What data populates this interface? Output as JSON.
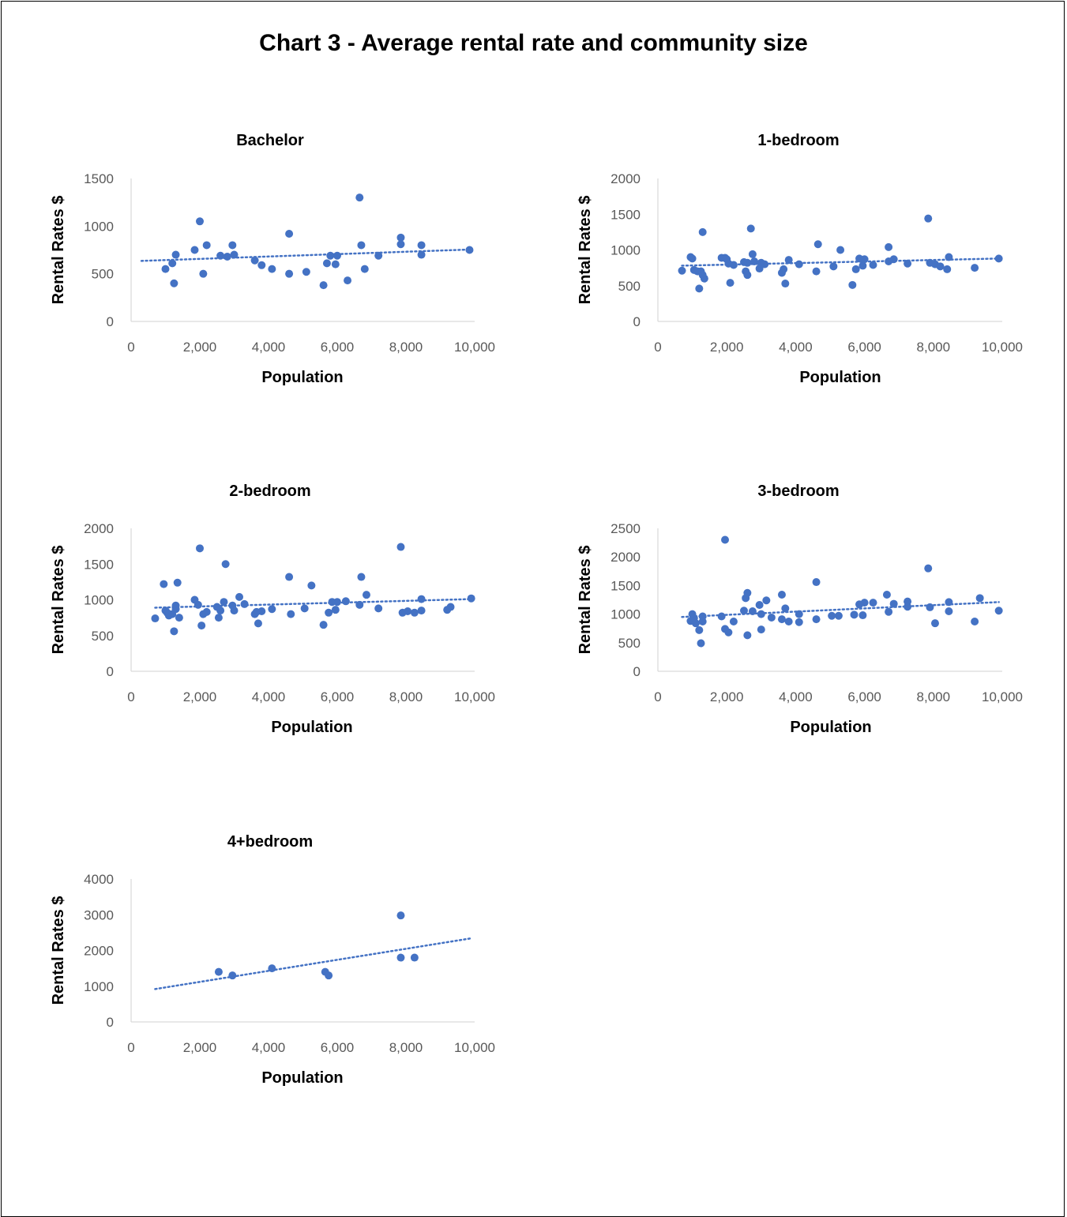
{
  "title": "Chart 3 - Average rental rate and community size",
  "colors": {
    "marker": "#4472C4",
    "trend": "#4472C4",
    "axis": "#D9D9D9",
    "text": "#595959"
  },
  "chart_data": [
    {
      "type": "scatter",
      "title": "Bachelor",
      "xlabel": "Population",
      "ylabel": "Rental Rates $",
      "xlim": [
        0,
        10000
      ],
      "ylim": [
        0,
        1500
      ],
      "xticks": [
        "0",
        "2,000",
        "4,000",
        "6,000",
        "8,000",
        "10,000"
      ],
      "yticks": [
        "0",
        "500",
        "1000",
        "1500"
      ],
      "trendline": {
        "style": "dotted",
        "x": [
          300,
          9900
        ],
        "y": [
          635,
          755
        ]
      },
      "x": [
        1000,
        1200,
        1250,
        1300,
        1850,
        2000,
        2100,
        2200,
        2600,
        2800,
        2950,
        3000,
        3600,
        3800,
        4100,
        4600,
        4600,
        5100,
        5600,
        5700,
        5800,
        5950,
        6000,
        6300,
        6650,
        6700,
        6800,
        7200,
        7850,
        7850,
        8450,
        8450,
        9850
      ],
      "y": [
        550,
        610,
        400,
        700,
        750,
        1050,
        500,
        800,
        690,
        680,
        800,
        700,
        640,
        590,
        550,
        920,
        500,
        520,
        380,
        610,
        690,
        600,
        690,
        430,
        1300,
        800,
        550,
        690,
        810,
        880,
        700,
        800,
        750
      ]
    },
    {
      "type": "scatter",
      "title": "1-bedroom",
      "xlabel": "Population",
      "ylabel": "Rental Rates $",
      "xlim": [
        0,
        10000
      ],
      "ylim": [
        0,
        2000
      ],
      "xticks": [
        "0",
        "2,000",
        "4,000",
        "6,000",
        "8,000",
        "10,000"
      ],
      "yticks": [
        "0",
        "500",
        "1000",
        "1500",
        "2000"
      ],
      "trendline": {
        "style": "dotted",
        "x": [
          700,
          9900
        ],
        "y": [
          780,
          880
        ]
      },
      "x": [
        700,
        950,
        1000,
        1050,
        1150,
        1200,
        1250,
        1300,
        1300,
        1350,
        1850,
        1950,
        2000,
        2050,
        2100,
        2200,
        2500,
        2550,
        2600,
        2600,
        2700,
        2750,
        2800,
        2950,
        3000,
        3100,
        3600,
        3650,
        3700,
        3800,
        4100,
        4600,
        4650,
        5100,
        5300,
        5650,
        5750,
        5850,
        5950,
        6000,
        6250,
        6700,
        6700,
        6850,
        7250,
        7850,
        7900,
        8050,
        8200,
        8400,
        8450,
        9200,
        9900
      ],
      "y": [
        710,
        900,
        880,
        720,
        700,
        460,
        700,
        650,
        1250,
        600,
        890,
        890,
        870,
        810,
        540,
        790,
        830,
        700,
        650,
        820,
        1300,
        940,
        840,
        740,
        820,
        800,
        680,
        730,
        530,
        860,
        800,
        700,
        1080,
        770,
        1000,
        510,
        730,
        880,
        780,
        870,
        790,
        840,
        1040,
        870,
        810,
        1440,
        820,
        800,
        770,
        730,
        900,
        750,
        880
      ]
    },
    {
      "type": "scatter",
      "title": "2-bedroom",
      "xlabel": "Population",
      "ylabel": "Rental Rates $",
      "xlim": [
        0,
        10000
      ],
      "ylim": [
        0,
        2000
      ],
      "xticks": [
        "0",
        "2,000",
        "4,000",
        "6,000",
        "8,000",
        "10,000"
      ],
      "yticks": [
        "0",
        "500",
        "1000",
        "1500",
        "2000"
      ],
      "trendline": {
        "style": "dotted",
        "x": [
          700,
          9900
        ],
        "y": [
          890,
          1010
        ]
      },
      "x": [
        700,
        950,
        1000,
        1050,
        1100,
        1200,
        1250,
        1300,
        1300,
        1350,
        1400,
        1850,
        1950,
        2000,
        2050,
        2100,
        2200,
        2500,
        2550,
        2600,
        2700,
        2750,
        2950,
        3000,
        3150,
        3300,
        3600,
        3650,
        3700,
        3800,
        4100,
        4600,
        4650,
        5050,
        5250,
        5600,
        5750,
        5850,
        5950,
        6000,
        6250,
        6650,
        6700,
        6850,
        7200,
        7850,
        7900,
        8050,
        8250,
        8450,
        8450,
        9200,
        9300,
        9900
      ],
      "y": [
        740,
        1220,
        850,
        820,
        780,
        800,
        560,
        870,
        920,
        1240,
        750,
        1000,
        930,
        1720,
        640,
        800,
        830,
        900,
        750,
        850,
        970,
        1500,
        920,
        850,
        1040,
        940,
        800,
        830,
        670,
        840,
        870,
        1320,
        800,
        880,
        1200,
        650,
        820,
        970,
        860,
        970,
        980,
        930,
        1320,
        1070,
        880,
        1740,
        820,
        840,
        820,
        1010,
        850,
        860,
        900,
        1020
      ]
    },
    {
      "type": "scatter",
      "title": "3-bedroom",
      "xlabel": "Population",
      "ylabel": "Rental Rates $",
      "xlim": [
        0,
        10000
      ],
      "ylim": [
        0,
        2500
      ],
      "xticks": [
        "0",
        "2,000",
        "4,000",
        "6,000",
        "8,000",
        "10,000"
      ],
      "yticks": [
        "0",
        "500",
        "1000",
        "1500",
        "2000",
        "2500"
      ],
      "trendline": {
        "style": "dotted",
        "x": [
          700,
          9900
        ],
        "y": [
          950,
          1210
        ]
      },
      "x": [
        950,
        1000,
        1050,
        1100,
        1200,
        1250,
        1300,
        1300,
        1850,
        1950,
        1950,
        2050,
        2200,
        2500,
        2550,
        2600,
        2600,
        2750,
        2950,
        3000,
        3000,
        3150,
        3300,
        3600,
        3600,
        3700,
        3800,
        4100,
        4100,
        4600,
        4600,
        5050,
        5250,
        5700,
        5850,
        5950,
        6000,
        6250,
        6650,
        6700,
        6850,
        7250,
        7250,
        7850,
        7900,
        8050,
        8450,
        8450,
        9200,
        9350,
        9900
      ],
      "y": [
        880,
        1000,
        930,
        840,
        720,
        490,
        870,
        960,
        960,
        2300,
        740,
        680,
        870,
        1060,
        1280,
        630,
        1370,
        1050,
        1160,
        730,
        1000,
        1240,
        940,
        1340,
        910,
        1100,
        870,
        860,
        1000,
        1560,
        910,
        970,
        970,
        990,
        1170,
        980,
        1200,
        1200,
        1340,
        1040,
        1180,
        1130,
        1220,
        1800,
        1120,
        840,
        1050,
        1210,
        870,
        1280,
        1060
      ]
    },
    {
      "type": "scatter",
      "title": "4+bedroom",
      "xlabel": "Population",
      "ylabel": "Rental Rates $",
      "xlim": [
        0,
        10000
      ],
      "ylim": [
        0,
        4000
      ],
      "xticks": [
        "0",
        "2,000",
        "4,000",
        "6,000",
        "8,000",
        "10,000"
      ],
      "yticks": [
        "0",
        "1000",
        "2000",
        "3000",
        "4000"
      ],
      "trendline": {
        "style": "dotted",
        "x": [
          700,
          9900
        ],
        "y": [
          920,
          2340
        ]
      },
      "x": [
        2550,
        2950,
        4100,
        5650,
        5750,
        7850,
        7850,
        8250
      ],
      "y": [
        1400,
        1300,
        1500,
        1400,
        1300,
        2980,
        1800,
        1800
      ]
    }
  ]
}
